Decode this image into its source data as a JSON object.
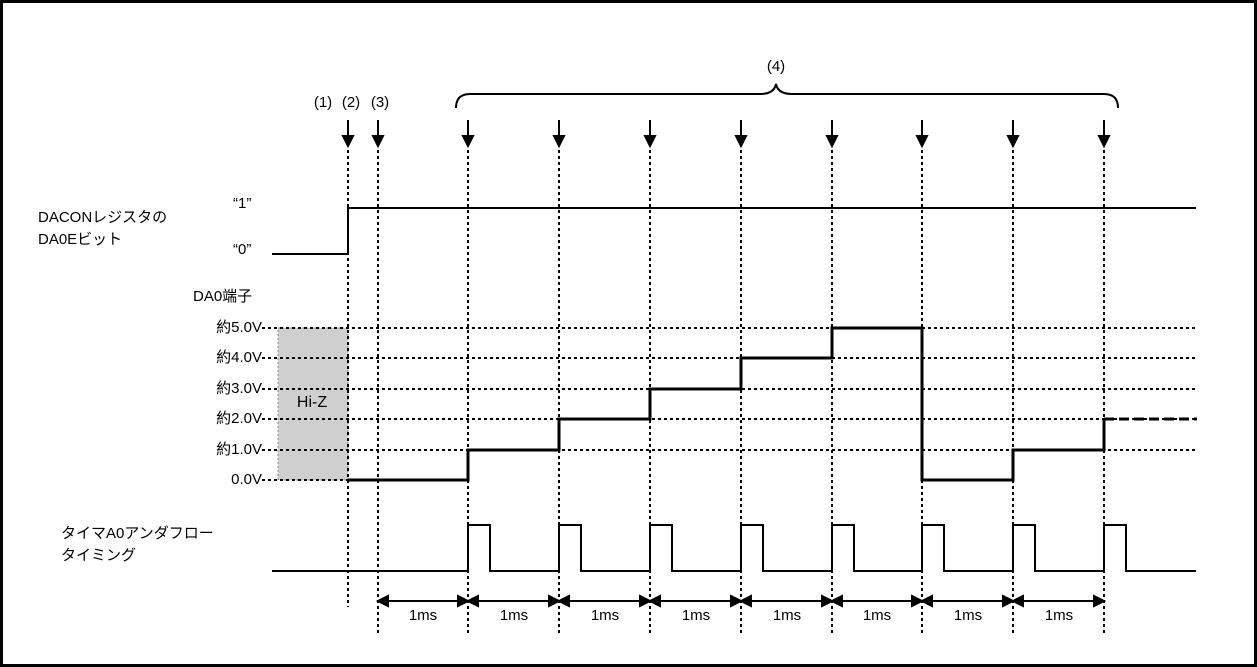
{
  "signals": {
    "dacon_label_line1": "DACONレジスタの",
    "dacon_label_line2": "DA0Eビット",
    "state_high": "“1”",
    "state_low": "“0”",
    "da0_pin_label": "DA0端子",
    "voltage_levels": [
      "約5.0V",
      "約4.0V",
      "約3.0V",
      "約2.0V",
      "約1.0V",
      "0.0V"
    ],
    "hiz_label": "Hi-Z",
    "timer_label_line1": "タイマA0アンダフロー",
    "timer_label_line2": "タイミング"
  },
  "markers": {
    "m1": "(1)",
    "m2": "(2)",
    "m3": "(3)",
    "m4": "(4)"
  },
  "interval_label": "1ms",
  "da0_output_levels_v": [
    0,
    1,
    2,
    3,
    4,
    5,
    0,
    1,
    2
  ]
}
